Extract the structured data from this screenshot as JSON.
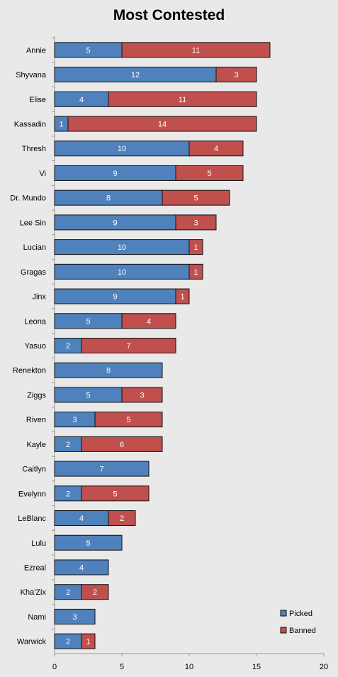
{
  "chart_data": {
    "type": "bar",
    "orientation": "horizontal",
    "stacked": true,
    "title": "Most Contested",
    "xlabel": "",
    "ylabel": "",
    "xlim": [
      0,
      20
    ],
    "xticks": [
      0,
      5,
      10,
      15,
      20
    ],
    "grid": false,
    "legend_position": "bottom-right",
    "categories": [
      "Annie",
      "Shyvana",
      "Elise",
      "Kassadin",
      "Thresh",
      "Vi",
      "Dr. Mundo",
      "Lee Sin",
      "Lucian",
      "Gragas",
      "Jinx",
      "Leona",
      "Yasuo",
      "Renekton",
      "Ziggs",
      "Riven",
      "Kayle",
      "Caitlyn",
      "Evelynn",
      "LeBlanc",
      "Lulu",
      "Ezreal",
      "Kha'Zix",
      "Nami",
      "Warwick"
    ],
    "series": [
      {
        "name": "Picked",
        "color": "#4f81bd",
        "values": [
          5,
          12,
          4,
          1,
          10,
          9,
          8,
          9,
          10,
          10,
          9,
          5,
          2,
          8,
          5,
          3,
          2,
          7,
          2,
          4,
          5,
          4,
          2,
          3,
          2
        ]
      },
      {
        "name": "Banned",
        "color": "#c0504d",
        "values": [
          11,
          3,
          11,
          14,
          4,
          5,
          5,
          3,
          1,
          1,
          1,
          4,
          7,
          0,
          3,
          5,
          6,
          0,
          5,
          2,
          0,
          0,
          2,
          0,
          1
        ]
      }
    ]
  }
}
